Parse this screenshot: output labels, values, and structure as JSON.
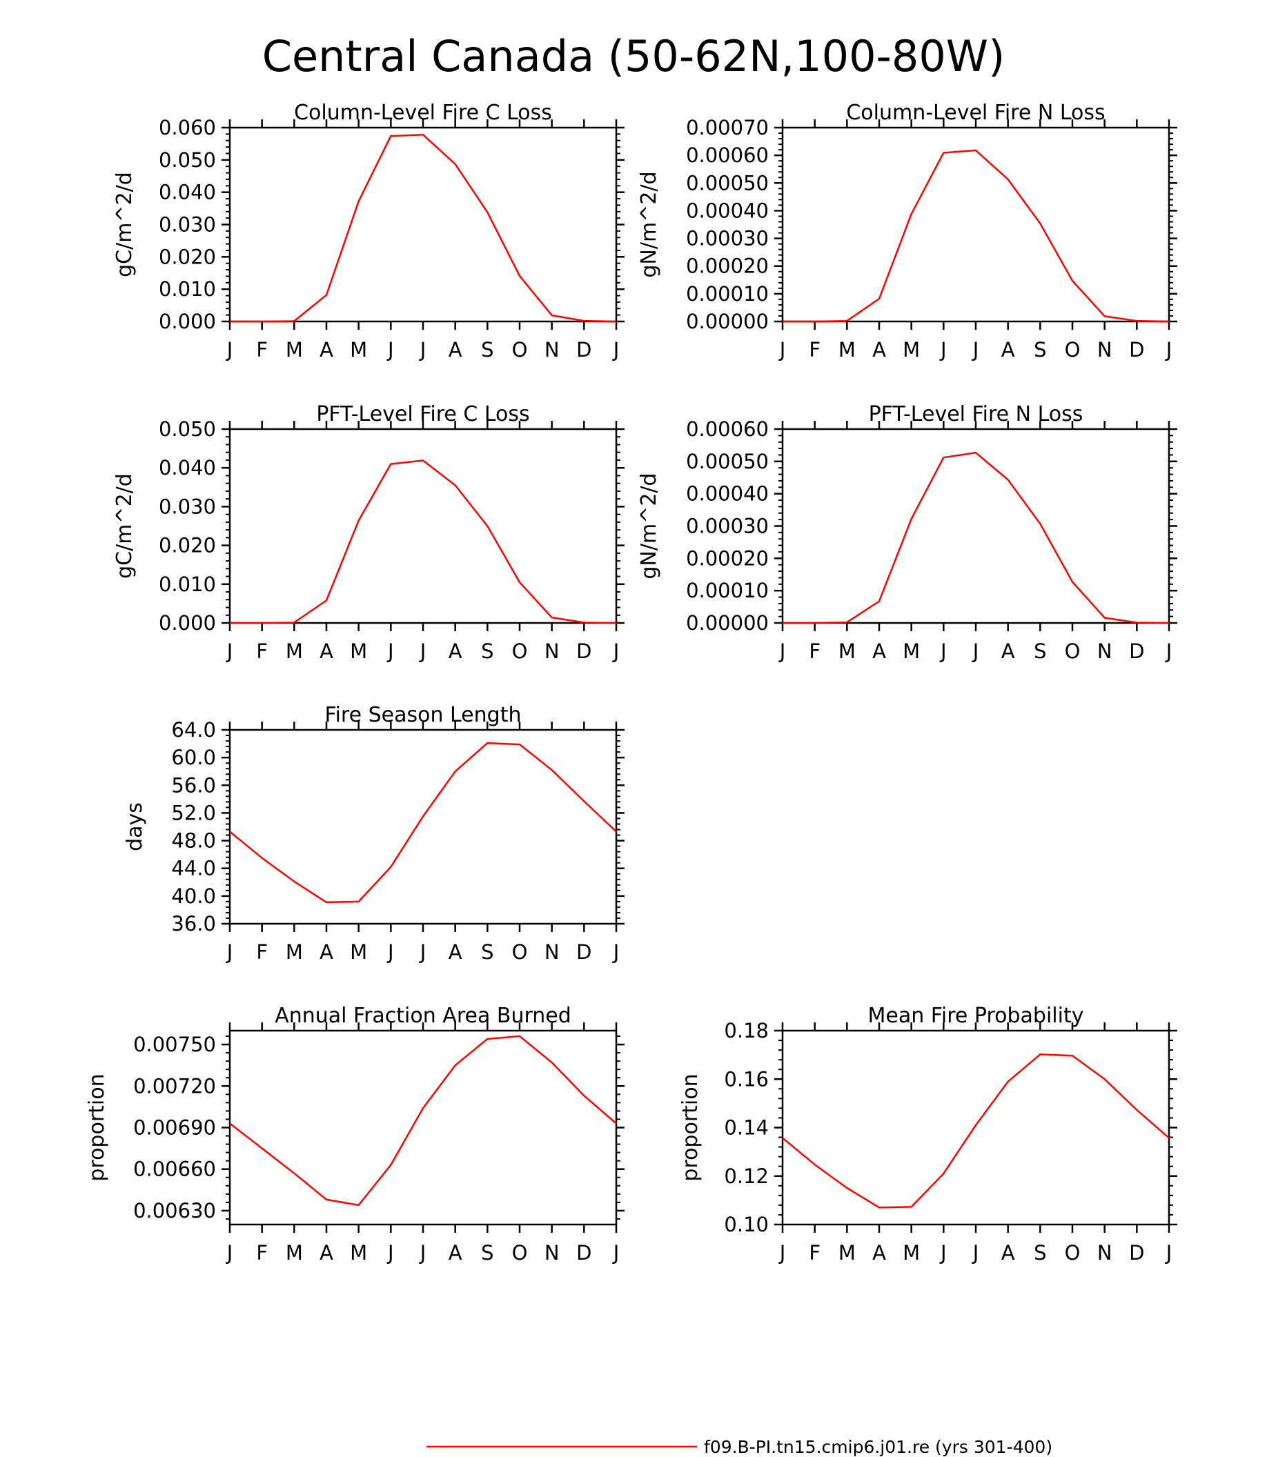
{
  "figure_title": "Central Canada (50-62N,100-80W)",
  "legend": {
    "label": "f09.B-PI.tn15.cmip6.j01.re (yrs 301-400)",
    "color": "#ff0000"
  },
  "line_color": "#ff0000",
  "chart_data": [
    {
      "type": "line",
      "title": "Column-Level Fire C Loss",
      "xlabel": "",
      "ylabel": "gC/m^2/d",
      "x": [
        "J",
        "F",
        "M",
        "A",
        "M",
        "J",
        "J",
        "A",
        "S",
        "O",
        "N",
        "D",
        "J"
      ],
      "ylim": [
        0,
        0.06
      ],
      "yticks": [
        "0.000",
        "0.010",
        "0.020",
        "0.030",
        "0.040",
        "0.050",
        "0.060"
      ],
      "series": [
        {
          "name": "f09.B-PI.tn15.cmip6.j01.re (yrs 301-400)",
          "values": [
            0.0,
            0.0,
            0.0001,
            0.0082,
            0.0372,
            0.0574,
            0.0578,
            0.0487,
            0.0338,
            0.0141,
            0.0019,
            0.0002,
            0.0
          ]
        }
      ]
    },
    {
      "type": "line",
      "title": "Column-Level Fire N Loss",
      "xlabel": "",
      "ylabel": "gN/m^2/d",
      "x": [
        "J",
        "F",
        "M",
        "A",
        "M",
        "J",
        "J",
        "A",
        "S",
        "O",
        "N",
        "D",
        "J"
      ],
      "ylim": [
        0,
        0.0007
      ],
      "yticks": [
        "0.00000",
        "0.00010",
        "0.00020",
        "0.00030",
        "0.00040",
        "0.00050",
        "0.00060",
        "0.00070"
      ],
      "series": [
        {
          "name": "f09.B-PI.tn15.cmip6.j01.re (yrs 301-400)",
          "values": [
            0.0,
            0.0,
            2e-06,
            8.2e-05,
            0.000388,
            0.000609,
            0.000618,
            0.000513,
            0.000354,
            0.000147,
            1.9e-05,
            2e-06,
            0.0
          ]
        }
      ]
    },
    {
      "type": "line",
      "title": "PFT-Level Fire C Loss",
      "xlabel": "",
      "ylabel": "gC/m^2/d",
      "x": [
        "J",
        "F",
        "M",
        "A",
        "M",
        "J",
        "J",
        "A",
        "S",
        "O",
        "N",
        "D",
        "J"
      ],
      "ylim": [
        0,
        0.05
      ],
      "yticks": [
        "0.000",
        "0.010",
        "0.020",
        "0.030",
        "0.040",
        "0.050"
      ],
      "series": [
        {
          "name": "f09.B-PI.tn15.cmip6.j01.re (yrs 301-400)",
          "values": [
            0.0,
            0.0,
            0.0001,
            0.0058,
            0.0264,
            0.041,
            0.0419,
            0.0355,
            0.025,
            0.0105,
            0.0014,
            0.0001,
            0.0
          ]
        }
      ]
    },
    {
      "type": "line",
      "title": "PFT-Level Fire N Loss",
      "xlabel": "",
      "ylabel": "gN/m^2/d",
      "x": [
        "J",
        "F",
        "M",
        "A",
        "M",
        "J",
        "J",
        "A",
        "S",
        "O",
        "N",
        "D",
        "J"
      ],
      "ylim": [
        0,
        0.0006
      ],
      "yticks": [
        "0.00000",
        "0.00010",
        "0.00020",
        "0.00030",
        "0.00040",
        "0.00050",
        "0.00060"
      ],
      "series": [
        {
          "name": "f09.B-PI.tn15.cmip6.j01.re (yrs 301-400)",
          "values": [
            0.0,
            0.0,
            2e-06,
            6.7e-05,
            0.000322,
            0.000512,
            0.000527,
            0.000443,
            0.000307,
            0.000127,
            1.6e-05,
            1e-06,
            0.0
          ]
        }
      ]
    },
    {
      "type": "line",
      "title": "Fire Season Length",
      "xlabel": "",
      "ylabel": "days",
      "x": [
        "J",
        "F",
        "M",
        "A",
        "M",
        "J",
        "J",
        "A",
        "S",
        "O",
        "N",
        "D",
        "J"
      ],
      "ylim": [
        36,
        64
      ],
      "yticks": [
        "36.0",
        "40.0",
        "44.0",
        "48.0",
        "52.0",
        "56.0",
        "60.0",
        "64.0"
      ],
      "series": [
        {
          "name": "f09.B-PI.tn15.cmip6.j01.re (yrs 301-400)",
          "values": [
            49.3,
            45.5,
            42.1,
            39.1,
            39.2,
            44.2,
            51.5,
            58.0,
            62.1,
            61.9,
            58.2,
            53.7,
            49.3
          ]
        }
      ]
    },
    {
      "type": "line",
      "title": "Annual Fraction Area Burned",
      "xlabel": "",
      "ylabel": "proportion",
      "x": [
        "J",
        "F",
        "M",
        "A",
        "M",
        "J",
        "J",
        "A",
        "S",
        "O",
        "N",
        "D",
        "J"
      ],
      "ylim": [
        0.0062,
        0.0076
      ],
      "yticks": [
        "0.00630",
        "0.00660",
        "0.00690",
        "0.00720",
        "0.00750"
      ],
      "series": [
        {
          "name": "f09.B-PI.tn15.cmip6.j01.re (yrs 301-400)",
          "values": [
            0.00693,
            0.00675,
            0.00657,
            0.00638,
            0.00634,
            0.00663,
            0.00704,
            0.00735,
            0.00754,
            0.00756,
            0.00737,
            0.00713,
            0.00693
          ]
        }
      ]
    },
    {
      "type": "line",
      "title": "Mean Fire Probability",
      "xlabel": "",
      "ylabel": "proportion",
      "x": [
        "J",
        "F",
        "M",
        "A",
        "M",
        "J",
        "J",
        "A",
        "S",
        "O",
        "N",
        "D",
        "J"
      ],
      "ylim": [
        0.1,
        0.18
      ],
      "yticks": [
        "0.10",
        "0.12",
        "0.14",
        "0.16",
        "0.18"
      ],
      "series": [
        {
          "name": "f09.B-PI.tn15.cmip6.j01.re (yrs 301-400)",
          "values": [
            0.1357,
            0.1247,
            0.1151,
            0.107,
            0.1073,
            0.121,
            0.141,
            0.159,
            0.1702,
            0.1697,
            0.16,
            0.1473,
            0.1357
          ]
        }
      ]
    }
  ]
}
